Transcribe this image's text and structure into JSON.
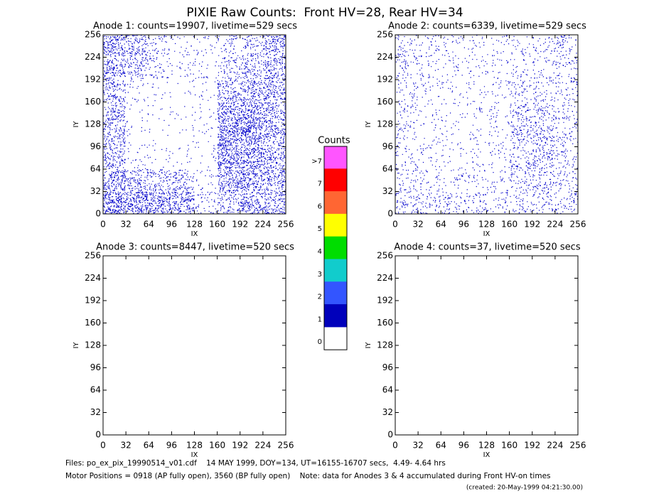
{
  "title": "PIXIE Raw Counts:  Front HV=28, Rear HV=34",
  "chart_data": [
    {
      "type": "heatmap",
      "title": "Anode 1: counts=19907, livetime=529 secs",
      "xlabel": "IX",
      "ylabel": "IY",
      "xlim": [
        0,
        256
      ],
      "ylim": [
        0,
        256
      ],
      "xticks": [
        0,
        32,
        64,
        96,
        128,
        160,
        192,
        224,
        256
      ],
      "yticks": [
        0,
        32,
        64,
        96,
        128,
        160,
        192,
        224,
        256
      ],
      "color": "#0000cc",
      "density": [
        [
          0.5,
          0.45,
          0.4,
          0.35,
          0.1,
          0.2,
          0.35,
          0.3
        ],
        [
          0.35,
          0.25,
          0.2,
          0.2,
          0.05,
          0.35,
          0.4,
          0.3
        ],
        [
          0.25,
          0.05,
          0.03,
          0.03,
          0.03,
          0.45,
          0.45,
          0.3
        ],
        [
          0.25,
          0.03,
          0.02,
          0.02,
          0.03,
          0.5,
          0.5,
          0.3
        ],
        [
          0.25,
          0.03,
          0.02,
          0.02,
          0.03,
          0.4,
          0.45,
          0.3
        ],
        [
          0.25,
          0.05,
          0.03,
          0.02,
          0.03,
          0.25,
          0.3,
          0.3
        ],
        [
          0.3,
          0.2,
          0.1,
          0.05,
          0.05,
          0.15,
          0.2,
          0.3
        ],
        [
          0.35,
          0.25,
          0.1,
          0.05,
          0.05,
          0.1,
          0.15,
          0.3
        ]
      ]
    },
    {
      "type": "heatmap",
      "title": "Anode 2: counts=6339, livetime=529 secs",
      "xlabel": "IX",
      "ylabel": "IY",
      "xlim": [
        0,
        256
      ],
      "ylim": [
        0,
        256
      ],
      "xticks": [
        0,
        32,
        64,
        96,
        128,
        160,
        192,
        224,
        256
      ],
      "yticks": [
        0,
        32,
        64,
        96,
        128,
        160,
        192,
        224,
        256
      ],
      "color": "#0000cc",
      "density": [
        [
          0.15,
          0.12,
          0.12,
          0.12,
          0.08,
          0.1,
          0.12,
          0.12
        ],
        [
          0.1,
          0.08,
          0.06,
          0.06,
          0.06,
          0.12,
          0.15,
          0.1
        ],
        [
          0.08,
          0.05,
          0.04,
          0.04,
          0.05,
          0.15,
          0.2,
          0.1
        ],
        [
          0.08,
          0.04,
          0.04,
          0.04,
          0.05,
          0.18,
          0.2,
          0.1
        ],
        [
          0.08,
          0.04,
          0.04,
          0.04,
          0.06,
          0.15,
          0.15,
          0.1
        ],
        [
          0.08,
          0.05,
          0.04,
          0.04,
          0.05,
          0.1,
          0.1,
          0.1
        ],
        [
          0.1,
          0.06,
          0.05,
          0.05,
          0.05,
          0.06,
          0.08,
          0.1
        ],
        [
          0.1,
          0.08,
          0.06,
          0.05,
          0.05,
          0.06,
          0.08,
          0.12
        ]
      ]
    },
    {
      "type": "heatmap",
      "title": "Anode 3: counts=8447, livetime=520 secs",
      "xlabel": "IX",
      "ylabel": "IY",
      "xlim": [
        0,
        256
      ],
      "ylim": [
        0,
        256
      ],
      "xticks": [
        0,
        32,
        64,
        96,
        128,
        160,
        192,
        224,
        256
      ],
      "yticks": [
        0,
        32,
        64,
        96,
        128,
        160,
        192,
        224,
        256
      ]
    },
    {
      "type": "heatmap",
      "title": "Anode 4: counts=37, livetime=520 secs",
      "xlabel": "IX",
      "ylabel": "IY",
      "xlim": [
        0,
        256
      ],
      "ylim": [
        0,
        256
      ],
      "xticks": [
        0,
        32,
        64,
        96,
        128,
        160,
        192,
        224,
        256
      ],
      "yticks": [
        0,
        32,
        64,
        96,
        128,
        160,
        192,
        224,
        256
      ]
    }
  ],
  "colorbar": {
    "title": "Counts",
    "labels": [
      ">7",
      "7",
      "6",
      "5",
      "4",
      "3",
      "2",
      "1",
      "0"
    ],
    "colors": [
      "#ff55ff",
      "#ff0000",
      "#ff6633",
      "#ffff00",
      "#00dd00",
      "#11cccc",
      "#3355ff",
      "#0000bb",
      "#ffffff"
    ]
  },
  "footer": {
    "files": "Files: po_ex_pix_19990514_v01.cdf    14 MAY 1999, DOY=134, UT=16155-16707 secs,  4.49- 4.64 hrs",
    "motor": "Motor Positions = 0918 (AP fully open), 3560 (BP fully open)    Note: data for Anodes 3 & 4 accumulated during Front HV-on times",
    "created": "(created: 20-May-1999 04:21:30.00)"
  }
}
